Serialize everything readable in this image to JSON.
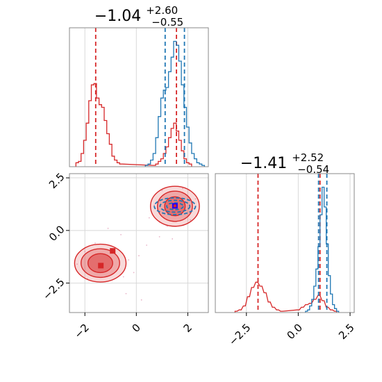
{
  "chart_data": {
    "type": "corner",
    "colors": {
      "red": "#d62728",
      "blue": "#1f77b4",
      "marker_blue": "#1a00ff",
      "grid": "#d8d8d8",
      "axis": "#888888"
    },
    "panels": [
      {
        "id": "hist-1",
        "type": "histogram",
        "title": {
          "main": "−1.04",
          "sup": "+2.60",
          "sub": "−0.55"
        },
        "xlim": [
          -2.6,
          2.8
        ],
        "xgrid": [
          -2,
          0,
          2
        ],
        "series": [
          {
            "name": "",
            "color": "#d62728",
            "bins": [
              [
                -2.3,
                0.03
              ],
              [
                -2.2,
                0.04
              ],
              [
                -2.1,
                0.1
              ],
              [
                -2.0,
                0.2
              ],
              [
                -1.9,
                0.33
              ],
              [
                -1.8,
                0.5
              ],
              [
                -1.7,
                0.62
              ],
              [
                -1.6,
                0.63
              ],
              [
                -1.5,
                0.52
              ],
              [
                -1.4,
                0.47
              ],
              [
                -1.3,
                0.45
              ],
              [
                -1.2,
                0.35
              ],
              [
                -1.1,
                0.25
              ],
              [
                -1.0,
                0.17
              ],
              [
                -0.9,
                0.08
              ],
              [
                -0.8,
                0.05
              ],
              [
                -0.7,
                0.03
              ],
              [
                -0.6,
                0.02
              ],
              [
                0.7,
                0.01
              ],
              [
                0.8,
                0.02
              ],
              [
                0.9,
                0.04
              ],
              [
                1.0,
                0.06
              ],
              [
                1.1,
                0.1
              ],
              [
                1.2,
                0.15
              ],
              [
                1.3,
                0.22
              ],
              [
                1.4,
                0.29
              ],
              [
                1.5,
                0.33
              ],
              [
                1.6,
                0.27
              ],
              [
                1.7,
                0.2
              ],
              [
                1.8,
                0.12
              ],
              [
                1.9,
                0.06
              ],
              [
                2.0,
                0.03
              ],
              [
                2.1,
                0.02
              ]
            ],
            "quantiles": [
              -1.58,
              1.56
            ]
          },
          {
            "name": "",
            "color": "#1f77b4",
            "bins": [
              [
                0.4,
                0.01
              ],
              [
                0.5,
                0.02
              ],
              [
                0.6,
                0.05
              ],
              [
                0.7,
                0.1
              ],
              [
                0.8,
                0.22
              ],
              [
                0.9,
                0.38
              ],
              [
                1.0,
                0.52
              ],
              [
                1.1,
                0.58
              ],
              [
                1.2,
                0.6
              ],
              [
                1.3,
                0.72
              ],
              [
                1.4,
                0.83
              ],
              [
                1.5,
                0.95
              ],
              [
                1.6,
                0.92
              ],
              [
                1.7,
                0.8
              ],
              [
                1.8,
                0.62
              ],
              [
                1.9,
                0.45
              ],
              [
                2.0,
                0.3
              ],
              [
                2.1,
                0.18
              ],
              [
                2.2,
                0.1
              ],
              [
                2.3,
                0.06
              ],
              [
                2.4,
                0.03
              ],
              [
                2.5,
                0.02
              ],
              [
                2.6,
                0.01
              ]
            ],
            "quantiles": [
              1.12,
              1.87
            ]
          }
        ]
      },
      {
        "id": "scatter-contour",
        "type": "2d-contour",
        "xlim": [
          -2.6,
          2.8
        ],
        "ylim": [
          -3.9,
          2.7
        ],
        "xticks": [
          -2,
          0,
          2
        ],
        "xticklabels": [
          "−2",
          "0",
          "2"
        ],
        "yticks": [
          2.5,
          0.0,
          -2.5
        ],
        "yticklabels": [
          "2.5",
          "0.0",
          "−2.5"
        ],
        "red_modes": [
          {
            "cx": 1.5,
            "cy": 1.15,
            "levels": [
              {
                "rx": 0.95,
                "ry": 0.95,
                "alpha": 0.35
              },
              {
                "rx": 0.68,
                "ry": 0.72,
                "alpha": 0.55
              },
              {
                "rx": 0.4,
                "ry": 0.45,
                "alpha": 0.9
              }
            ]
          },
          {
            "cx": -1.4,
            "cy": -1.55,
            "levels": [
              {
                "rx": 1.0,
                "ry": 0.9,
                "alpha": 0.35
              },
              {
                "rx": 0.75,
                "ry": 0.68,
                "alpha": 0.55
              },
              {
                "rx": 0.48,
                "ry": 0.45,
                "alpha": 0.9
              }
            ]
          }
        ],
        "blue_modes": [
          {
            "cx": 1.5,
            "cy": 1.15,
            "levels": [
              {
                "rx": 0.8,
                "ry": 0.4
              },
              {
                "rx": 0.58,
                "ry": 0.28
              },
              {
                "rx": 0.32,
                "ry": 0.16
              }
            ]
          }
        ],
        "markers": [
          {
            "x": 1.5,
            "y": 1.17,
            "color": "#1a00ff"
          },
          {
            "x": 1.5,
            "y": 1.17,
            "color": "#d62728",
            "size": "small"
          },
          {
            "x": -1.38,
            "y": -1.67,
            "color": "#d62728"
          },
          {
            "x": -0.92,
            "y": -0.97,
            "color": "#d62728"
          }
        ],
        "scatter_points": [
          [
            1.0,
            1.9
          ],
          [
            2.1,
            0.5
          ],
          [
            0.9,
            0.4
          ],
          [
            1.8,
            2.0
          ],
          [
            2.3,
            1.5
          ],
          [
            0.7,
            1.2
          ],
          [
            1.2,
            0.2
          ],
          [
            -2.0,
            -1.0
          ],
          [
            -0.5,
            -2.2
          ],
          [
            -0.7,
            -0.9
          ],
          [
            -1.9,
            -2.3
          ],
          [
            -0.3,
            -1.4
          ],
          [
            0.1,
            -1.2
          ],
          [
            -0.1,
            -2.0
          ],
          [
            -1.6,
            -0.6
          ],
          [
            -2.3,
            -1.6
          ],
          [
            0.4,
            -0.7
          ],
          [
            -0.6,
            -0.2
          ],
          [
            0.2,
            -3.3
          ],
          [
            0.5,
            0.6
          ],
          [
            -1.1,
            0.1
          ],
          [
            0.9,
            -0.3
          ],
          [
            1.4,
            -0.4
          ],
          [
            -0.4,
            -3.0
          ]
        ]
      },
      {
        "id": "hist-2",
        "type": "histogram",
        "title": {
          "main": "−1.41",
          "sup": "+2.52",
          "sub": "−0.54"
        },
        "xlim": [
          -4.0,
          2.7
        ],
        "xticks": [
          -2.5,
          0.0,
          2.5
        ],
        "xticklabels": [
          "−2.5",
          "0.0",
          "2.5"
        ],
        "series": [
          {
            "name": "",
            "color": "#d62728",
            "bins": [
              [
                -3.0,
                0.01
              ],
              [
                -2.8,
                0.02
              ],
              [
                -2.6,
                0.05
              ],
              [
                -2.4,
                0.12
              ],
              [
                -2.2,
                0.19
              ],
              [
                -2.0,
                0.23
              ],
              [
                -1.8,
                0.2
              ],
              [
                -1.6,
                0.15
              ],
              [
                -1.4,
                0.08
              ],
              [
                -1.2,
                0.04
              ],
              [
                -1.0,
                0.02
              ],
              [
                -0.8,
                0.01
              ],
              [
                0.0,
                0.02
              ],
              [
                0.2,
                0.04
              ],
              [
                0.4,
                0.06
              ],
              [
                0.6,
                0.07
              ],
              [
                0.8,
                0.1
              ],
              [
                1.0,
                0.13
              ],
              [
                1.2,
                0.09
              ],
              [
                1.4,
                0.04
              ],
              [
                1.6,
                0.02
              ],
              [
                1.8,
                0.01
              ]
            ],
            "quantiles": [
              -1.94,
              1.05
            ]
          },
          {
            "name": "",
            "color": "#1f77b4",
            "bins": [
              [
                0.4,
                0.01
              ],
              [
                0.5,
                0.02
              ],
              [
                0.6,
                0.05
              ],
              [
                0.7,
                0.1
              ],
              [
                0.8,
                0.2
              ],
              [
                0.9,
                0.33
              ],
              [
                1.0,
                0.5
              ],
              [
                1.1,
                0.74
              ],
              [
                1.2,
                0.95
              ],
              [
                1.3,
                0.8
              ],
              [
                1.4,
                0.52
              ],
              [
                1.5,
                0.28
              ],
              [
                1.6,
                0.14
              ],
              [
                1.7,
                0.06
              ],
              [
                1.8,
                0.03
              ],
              [
                1.9,
                0.01
              ]
            ],
            "quantiles": [
              0.98,
              1.38
            ]
          }
        ]
      }
    ]
  }
}
